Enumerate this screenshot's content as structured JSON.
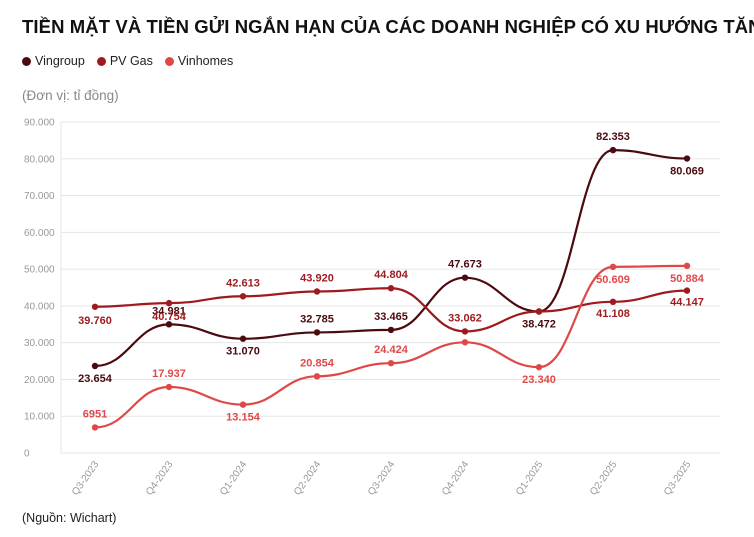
{
  "chart_data": {
    "type": "line",
    "title": "TIỀN MẶT VÀ TIỀN GỬI NGẮN HẠN CỦA CÁC DOANH NGHIỆP CÓ XU HƯỚNG TĂNG",
    "unit_note": "(Đơn vị: tỉ đồng)",
    "source": "(Nguồn: Wichart)",
    "categories": [
      "Q3-2023",
      "Q4-2023",
      "Q1-2024",
      "Q2-2024",
      "Q3-2024",
      "Q4-2024",
      "Q1-2025",
      "Q2-2025",
      "Q3-2025"
    ],
    "ylim": [
      0,
      90000
    ],
    "yticks": [
      0,
      10000,
      20000,
      30000,
      40000,
      50000,
      60000,
      70000,
      80000,
      90000
    ],
    "ytick_labels": [
      "0",
      "10.000",
      "20.000",
      "30.000",
      "40.000",
      "50.000",
      "60.000",
      "70.000",
      "80.000",
      "90.000"
    ],
    "legend_position": "top-left",
    "series": [
      {
        "name": "Vingroup",
        "color": "#4a0a0e",
        "values": [
          23654,
          34981,
          31070,
          32785,
          33465,
          47673,
          38472,
          82353,
          80069
        ],
        "labels": [
          "23.654",
          "34.981",
          "31.070",
          "32.785",
          "33.465",
          "47.673",
          "38.472",
          "82.353",
          "80.069"
        ]
      },
      {
        "name": "PV Gas",
        "color": "#9e1a1e",
        "values": [
          39760,
          40754,
          42613,
          43920,
          44804,
          33062,
          38472,
          41108,
          44147
        ],
        "labels": [
          "39.760",
          "40.754",
          "42.613",
          "43.920",
          "44.804",
          "33.062",
          "",
          "41.108",
          "44.147"
        ]
      },
      {
        "name": "Vinhomes",
        "color": "#e04848",
        "values": [
          6951,
          17937,
          13154,
          20854,
          24424,
          30100,
          23340,
          50609,
          50884
        ],
        "labels": [
          "6951",
          "17.937",
          "13.154",
          "20.854",
          "24.424",
          "",
          "23.340",
          "50.609",
          "50.884"
        ]
      }
    ]
  }
}
